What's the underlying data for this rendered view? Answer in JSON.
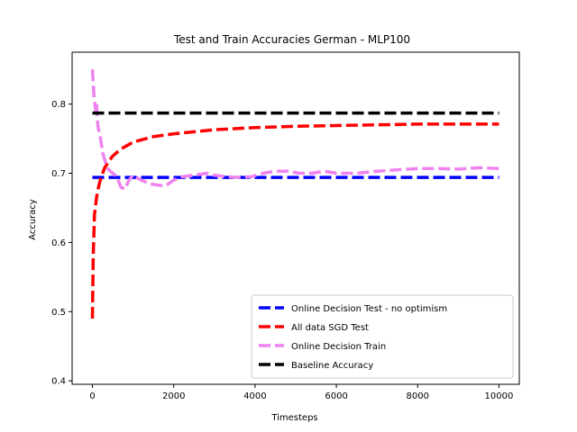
{
  "chart_data": {
    "type": "line",
    "title": "Test and Train Accuracies German - MLP100",
    "xlabel": "Timesteps",
    "ylabel": "Accuracy",
    "xlim": [
      -500,
      10500
    ],
    "ylim": [
      0.395,
      0.875
    ],
    "xticks": [
      0,
      2000,
      4000,
      6000,
      8000,
      10000
    ],
    "xtick_labels": [
      "0",
      "2000",
      "4000",
      "6000",
      "8000",
      "10000"
    ],
    "yticks": [
      0.4,
      0.5,
      0.6,
      0.7,
      0.8
    ],
    "ytick_labels": [
      "0.4",
      "0.5",
      "0.6",
      "0.7",
      "0.8"
    ],
    "grid": false,
    "legend_position": "lower right",
    "series": [
      {
        "name": "Online Decision Test - no optimism",
        "color": "#0000ff",
        "style": "dashed",
        "x": [
          0,
          10000
        ],
        "y": [
          0.694,
          0.694
        ]
      },
      {
        "name": "All data SGD Test",
        "color": "#ff0000",
        "style": "dashed",
        "x": [
          0,
          20,
          50,
          100,
          150,
          200,
          300,
          400,
          500,
          700,
          1000,
          1500,
          2000,
          3000,
          4000,
          5000,
          6000,
          7000,
          8000,
          9000,
          10000
        ],
        "y": [
          0.49,
          0.58,
          0.64,
          0.665,
          0.68,
          0.692,
          0.708,
          0.717,
          0.725,
          0.735,
          0.745,
          0.753,
          0.757,
          0.763,
          0.766,
          0.768,
          0.769,
          0.77,
          0.771,
          0.771,
          0.771
        ]
      },
      {
        "name": "Online Decision Train",
        "color": "#ee82ee",
        "style": "dashed",
        "x": [
          0,
          20,
          40,
          60,
          80,
          100,
          130,
          160,
          200,
          250,
          300,
          350,
          400,
          500,
          600,
          700,
          800,
          900,
          1000,
          1200,
          1400,
          1600,
          1800,
          2000,
          2200,
          2500,
          2800,
          3000,
          3300,
          3600,
          3900,
          4200,
          4500,
          4800,
          5100,
          5400,
          5700,
          6000,
          6500,
          7000,
          7500,
          8000,
          8500,
          9000,
          9500,
          10000
        ],
        "y": [
          0.85,
          0.83,
          0.81,
          0.8,
          0.79,
          0.8,
          0.77,
          0.76,
          0.75,
          0.73,
          0.72,
          0.71,
          0.705,
          0.7,
          0.695,
          0.68,
          0.677,
          0.69,
          0.697,
          0.69,
          0.685,
          0.683,
          0.682,
          0.69,
          0.695,
          0.697,
          0.7,
          0.697,
          0.695,
          0.694,
          0.695,
          0.7,
          0.703,
          0.703,
          0.7,
          0.7,
          0.703,
          0.7,
          0.7,
          0.703,
          0.705,
          0.707,
          0.707,
          0.706,
          0.708,
          0.707
        ]
      },
      {
        "name": "Baseline Accuracy",
        "color": "#000000",
        "style": "dashed",
        "x": [
          0,
          10000
        ],
        "y": [
          0.787,
          0.787
        ]
      }
    ]
  }
}
